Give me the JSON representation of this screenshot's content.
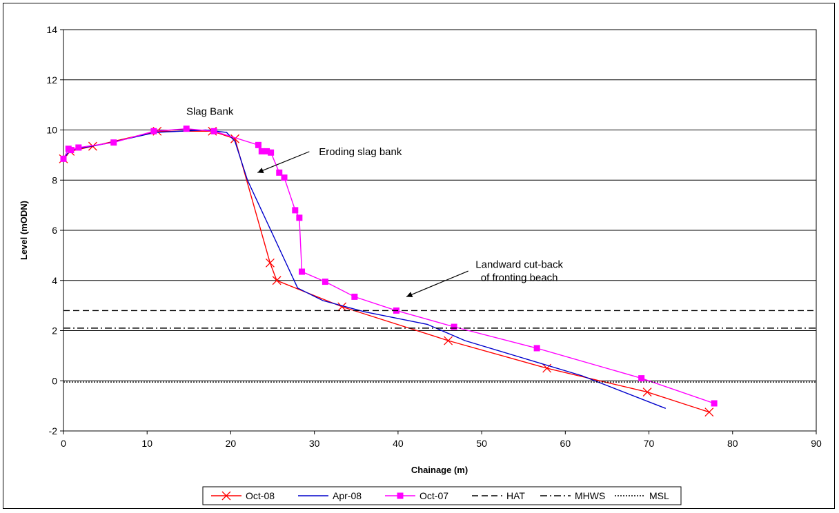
{
  "chart_data": {
    "type": "line",
    "xlabel": "Chainage (m)",
    "ylabel": "Level (mODN)",
    "xlim": [
      0,
      90
    ],
    "ylim": [
      -2,
      14
    ],
    "xticks": [
      0,
      10,
      20,
      30,
      40,
      50,
      60,
      70,
      80,
      90
    ],
    "yticks": [
      -2,
      0,
      2,
      4,
      6,
      8,
      10,
      12,
      14
    ],
    "grid": "horizontal",
    "legend_position": "bottom",
    "series": [
      {
        "name": "Oct-08",
        "color": "#ff0000",
        "marker": "x",
        "line": "solid",
        "points": [
          [
            0,
            8.85
          ],
          [
            0.8,
            9.15
          ],
          [
            3.5,
            9.35
          ],
          [
            11.2,
            9.95
          ],
          [
            17.8,
            9.95
          ],
          [
            20.5,
            9.65
          ],
          [
            24.7,
            4.7
          ],
          [
            25.5,
            4.0
          ],
          [
            33.3,
            2.95
          ],
          [
            46.0,
            1.6
          ],
          [
            57.8,
            0.5
          ],
          [
            69.8,
            -0.45
          ],
          [
            77.2,
            -1.25
          ]
        ]
      },
      {
        "name": "Apr-08",
        "color": "#0000cc",
        "marker": "none",
        "line": "solid",
        "points": [
          [
            0,
            8.85
          ],
          [
            0.8,
            9.2
          ],
          [
            5.0,
            9.45
          ],
          [
            11.0,
            9.9
          ],
          [
            14.0,
            9.95
          ],
          [
            17.0,
            10.0
          ],
          [
            19.5,
            9.9
          ],
          [
            20.5,
            9.55
          ],
          [
            22.0,
            8.0
          ],
          [
            28.0,
            3.7
          ],
          [
            31.0,
            3.2
          ],
          [
            36.0,
            2.75
          ],
          [
            43.5,
            2.25
          ],
          [
            48.0,
            1.6
          ],
          [
            55.0,
            0.9
          ],
          [
            62.0,
            0.2
          ],
          [
            72.0,
            -1.1
          ]
        ]
      },
      {
        "name": "Oct-07",
        "color": "#ff00ff",
        "marker": "square",
        "line": "solid",
        "points": [
          [
            0,
            8.85
          ],
          [
            0.6,
            9.25
          ],
          [
            0.9,
            9.2
          ],
          [
            1.8,
            9.3
          ],
          [
            6.0,
            9.5
          ],
          [
            10.8,
            9.95
          ],
          [
            14.7,
            10.05
          ],
          [
            18.0,
            9.95
          ],
          [
            23.3,
            9.4
          ],
          [
            23.7,
            9.15
          ],
          [
            24.3,
            9.15
          ],
          [
            24.8,
            9.1
          ],
          [
            25.8,
            8.3
          ],
          [
            26.4,
            8.1
          ],
          [
            27.7,
            6.8
          ],
          [
            28.2,
            6.5
          ],
          [
            28.5,
            4.35
          ],
          [
            31.3,
            3.95
          ],
          [
            34.8,
            3.35
          ],
          [
            39.8,
            2.8
          ],
          [
            46.7,
            2.15
          ],
          [
            56.6,
            1.3
          ],
          [
            69.1,
            0.1
          ],
          [
            77.8,
            -0.9
          ]
        ]
      },
      {
        "name": "HAT",
        "color": "#000000",
        "marker": "none",
        "line": "dashed",
        "y": 2.8
      },
      {
        "name": "MHWS",
        "color": "#000000",
        "marker": "none",
        "line": "dashdot",
        "y": 2.1
      },
      {
        "name": "MSL",
        "color": "#000000",
        "marker": "none",
        "line": "dotted",
        "y": -0.05
      }
    ],
    "annotations": [
      {
        "text": "Slag Bank",
        "lines": [
          "Slag Bank"
        ],
        "at": [
          17.5,
          10.6
        ],
        "arrow": false
      },
      {
        "text": "Eroding slag bank",
        "lines": [
          "Eroding slag bank"
        ],
        "at": [
          35.5,
          9.0
        ],
        "arrow_to": [
          23.2,
          8.3
        ]
      },
      {
        "text": "Landward cut-back of fronting beach",
        "lines": [
          "Landward cut-back",
          "of fronting beach"
        ],
        "at": [
          54.5,
          4.5
        ],
        "arrow_to": [
          41.0,
          3.35
        ]
      }
    ]
  }
}
